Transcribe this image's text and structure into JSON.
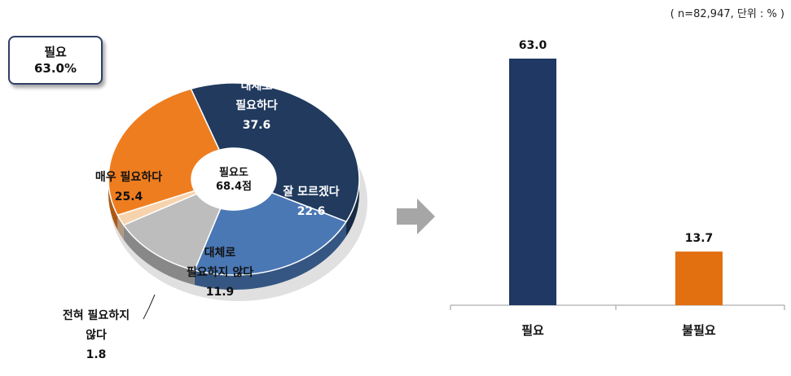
{
  "summary": {
    "label": "필요",
    "value": "63.0%"
  },
  "unit_note": "( n=82,947, 단위 : % )",
  "chart_data": [
    {
      "type": "pie",
      "variant": "donut-3d",
      "center_label": {
        "line1": "필요도",
        "line2": "68.4점"
      },
      "slices": [
        {
          "label": "대체로 필요하다",
          "lines": [
            "대체로",
            "필요하다"
          ],
          "value": 37.6,
          "color": "#213a5e",
          "text_color": "#ffffff"
        },
        {
          "label": "잘 모르겠다",
          "lines": [
            "잘 모르겠다"
          ],
          "value": 22.6,
          "color": "#4a78b5",
          "text_color": "#ffffff"
        },
        {
          "label": "대체로 필요하지 않다",
          "lines": [
            "대체로",
            "필요하지 않다"
          ],
          "value": 11.9,
          "color": "#bdbdbd",
          "text_color": "#111111"
        },
        {
          "label": "전혀 필요하지 않다",
          "lines": [
            "전혀 필요하지",
            "않다"
          ],
          "value": 1.8,
          "color": "#f7d3ad",
          "text_color": "#111111"
        },
        {
          "label": "매우 필요하다",
          "lines": [
            "매우 필요하다"
          ],
          "value": 25.4,
          "color": "#ee7d1f",
          "text_color": "#111111"
        }
      ]
    },
    {
      "type": "bar",
      "categories": [
        "필요",
        "불필요"
      ],
      "values": [
        63.0,
        13.7
      ],
      "value_labels": [
        "63.0",
        "13.7"
      ],
      "colors": [
        "#1f3864",
        "#e26f10"
      ],
      "ylim": [
        0,
        70
      ]
    }
  ]
}
